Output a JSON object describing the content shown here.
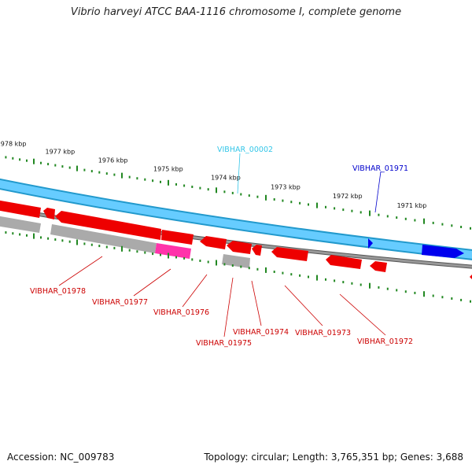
{
  "title": "Vibrio harveyi ATCC BAA-1116 chromosome I, complete genome",
  "footer": {
    "accession": "Accession: NC_009783",
    "stats": "Topology: circular; Length: 3,765,351 bp; Genes: 3,688"
  },
  "kbp_ticks": [
    {
      "label": "1978 kbp",
      "pos": 0.03
    },
    {
      "label": "1977 kbp",
      "pos": 0.145
    },
    {
      "label": "1976 kbp",
      "pos": 0.265
    },
    {
      "label": "1975 kbp",
      "pos": 0.385
    },
    {
      "label": "1974 kbp",
      "pos": 0.505
    },
    {
      "label": "1973 kbp",
      "pos": 0.625
    },
    {
      "label": "1972 kbp",
      "pos": 0.745
    },
    {
      "label": "1971 kbp",
      "pos": 0.865
    }
  ],
  "genes": [
    {
      "name": "VIBHAR_00002",
      "color": "#33c6e8"
    },
    {
      "name": "VIBHAR_01971",
      "color": "#0000cc"
    },
    {
      "name": "VIBHAR_01978",
      "color": "#cc0000"
    },
    {
      "name": "VIBHAR_01977",
      "color": "#cc0000"
    },
    {
      "name": "VIBHAR_01976",
      "color": "#cc0000"
    },
    {
      "name": "VIBHAR_01975",
      "color": "#cc0000"
    },
    {
      "name": "VIBHAR_01974",
      "color": "#cc0000"
    },
    {
      "name": "VIBHAR_01973",
      "color": "#cc0000"
    },
    {
      "name": "VIBHAR_01972",
      "color": "#cc0000"
    }
  ],
  "colors": {
    "cds": "#ee0000",
    "cds_highlight": "#ff33aa",
    "rna": "#aaaaaa",
    "backbone": "#777777",
    "feature_band": "#66ccff",
    "feature_dark": "#0000ee",
    "tick": "#228822"
  }
}
